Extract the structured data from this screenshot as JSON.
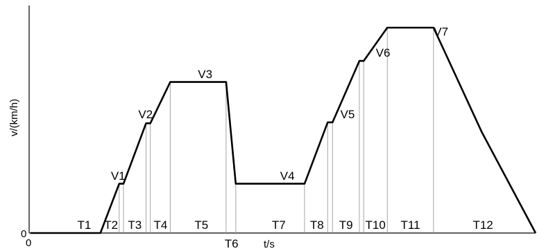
{
  "chart_data": {
    "type": "line",
    "xlabel": "t/s",
    "ylabel": "v/(km/h)",
    "x_origin_label": "0",
    "y_origin_label": "0",
    "grid": false,
    "line_color": "#000000",
    "guide_color": "#9a9a9a",
    "series": [
      {
        "x": [
          0,
          7,
          13,
          16.5,
          17.3,
          21.5,
          22.3,
          26,
          36.4,
          38.2,
          51,
          55.3,
          56.2,
          61.2,
          62,
          66.4,
          75,
          84,
          94
        ],
        "y": [
          0,
          0,
          0,
          2.45,
          2.45,
          5.45,
          5.45,
          7.5,
          7.5,
          2.45,
          2.45,
          5.5,
          5.5,
          8.55,
          8.55,
          10.2,
          10.2,
          5,
          0
        ]
      }
    ],
    "speed_labels": [
      {
        "text": "V1",
        "x": 16.3,
        "y": 2.65
      },
      {
        "text": "V2",
        "x": 21.4,
        "y": 5.7
      },
      {
        "text": "V3",
        "x": 32.5,
        "y": 7.7
      },
      {
        "text": "V4",
        "x": 47.8,
        "y": 2.65
      },
      {
        "text": "V5",
        "x": 59.0,
        "y": 5.7
      },
      {
        "text": "V6",
        "x": 65.6,
        "y": 8.75
      },
      {
        "text": "V7",
        "x": 76.4,
        "y": 9.8
      }
    ],
    "segment_labels": [
      {
        "text": "T1",
        "x": 10,
        "offset": 0
      },
      {
        "text": "T2",
        "x": 15,
        "offset": 0
      },
      {
        "text": "T3",
        "x": 19.4,
        "offset": 0
      },
      {
        "text": "T4",
        "x": 24.2,
        "offset": 0
      },
      {
        "text": "T5",
        "x": 31.8,
        "offset": 0
      },
      {
        "text": "T6",
        "x": 37.4,
        "offset": 1
      },
      {
        "text": "T7",
        "x": 46.2,
        "offset": 0
      },
      {
        "text": "T8",
        "x": 53.3,
        "offset": 0
      },
      {
        "text": "T9",
        "x": 58.7,
        "offset": 0
      },
      {
        "text": "T10",
        "x": 64.2,
        "offset": 0
      },
      {
        "text": "T11",
        "x": 70.7,
        "offset": 0
      },
      {
        "text": "T12",
        "x": 84.2,
        "offset": 0
      }
    ],
    "guide_lines": [
      {
        "x": 16.5,
        "y": 2.45
      },
      {
        "x": 17.3,
        "y": 2.45
      },
      {
        "x": 21.5,
        "y": 5.45
      },
      {
        "x": 22.3,
        "y": 5.45
      },
      {
        "x": 26,
        "y": 7.5
      },
      {
        "x": 36.4,
        "y": 7.5
      },
      {
        "x": 38.2,
        "y": 2.45
      },
      {
        "x": 51,
        "y": 2.45
      },
      {
        "x": 55.3,
        "y": 5.5
      },
      {
        "x": 56.2,
        "y": 5.5
      },
      {
        "x": 61.2,
        "y": 8.55
      },
      {
        "x": 62,
        "y": 8.55
      },
      {
        "x": 66.4,
        "y": 10.2
      },
      {
        "x": 75,
        "y": 10.2
      }
    ],
    "xlim": [
      0,
      94
    ],
    "ylim": [
      0,
      11.3
    ]
  }
}
